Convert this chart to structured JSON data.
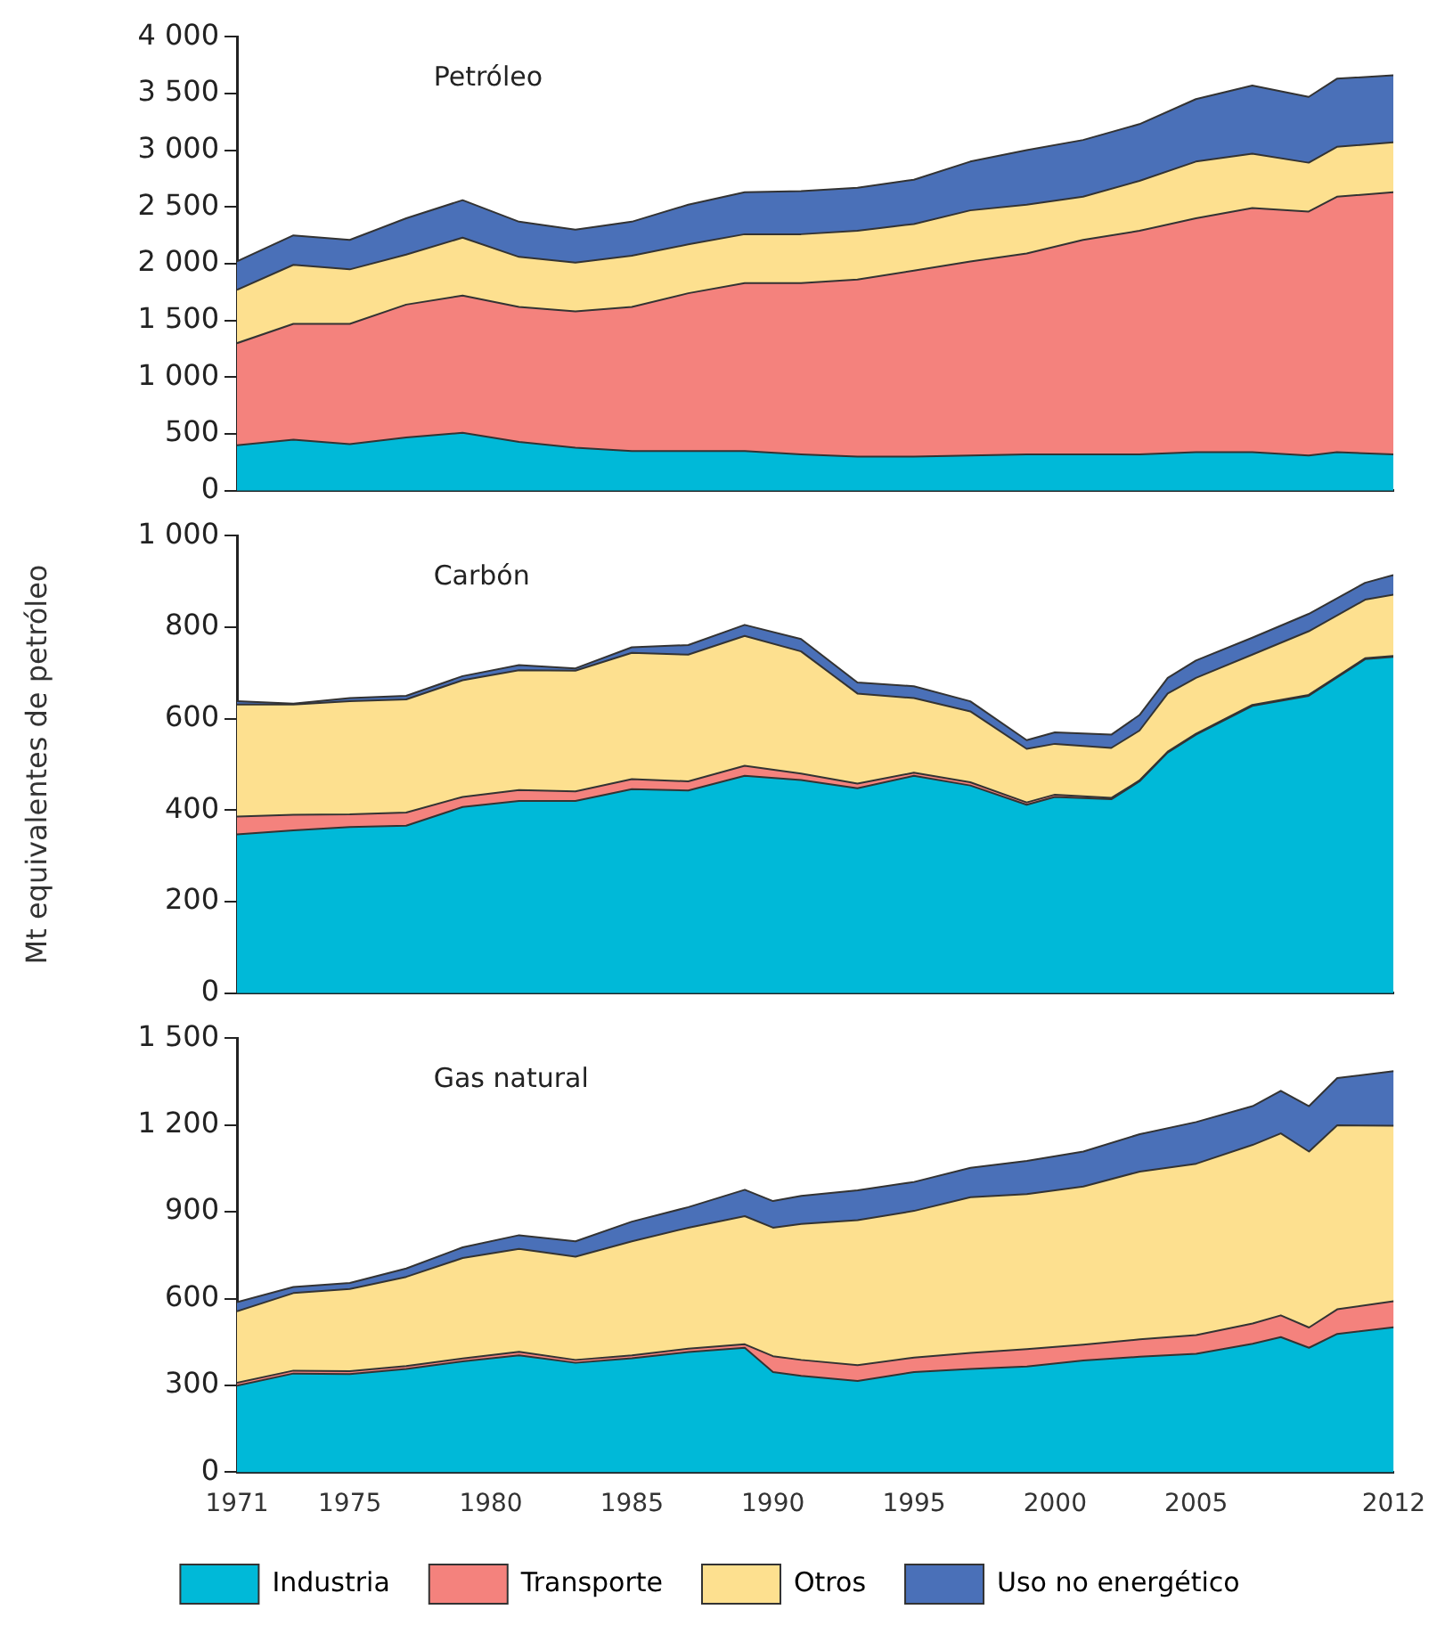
{
  "chart_data": [
    {
      "type": "area",
      "title": "Petróleo",
      "stacked": true,
      "x": [
        1971,
        1973,
        1975,
        1977,
        1979,
        1981,
        1983,
        1985,
        1987,
        1989,
        1991,
        1993,
        1995,
        1997,
        1999,
        2001,
        2003,
        2005,
        2007,
        2009,
        2010,
        2012
      ],
      "series": [
        {
          "color": "#00b9d8",
          "values": [
            400,
            450,
            410,
            470,
            510,
            430,
            380,
            350,
            350,
            350,
            320,
            300,
            300,
            310,
            320,
            320,
            320,
            340,
            340,
            310,
            340,
            320
          ]
        },
        {
          "color": "#f4827d",
          "values": [
            900,
            1020,
            1060,
            1170,
            1210,
            1190,
            1200,
            1270,
            1390,
            1480,
            1510,
            1560,
            1640,
            1710,
            1770,
            1890,
            1970,
            2060,
            2150,
            2150,
            2250,
            2310
          ]
        },
        {
          "color": "#fde08f",
          "values": [
            470,
            520,
            480,
            440,
            510,
            440,
            430,
            450,
            430,
            430,
            430,
            430,
            410,
            450,
            430,
            380,
            440,
            500,
            480,
            430,
            440,
            440
          ]
        },
        {
          "color": "#4a70b8",
          "values": [
            250,
            260,
            260,
            320,
            330,
            310,
            290,
            300,
            350,
            370,
            380,
            380,
            390,
            430,
            480,
            500,
            500,
            550,
            600,
            580,
            600,
            590
          ]
        }
      ],
      "xlim": [
        1971,
        2012
      ],
      "xticks": [
        1971,
        1975,
        1980,
        1985,
        1990,
        1995,
        2000,
        2005,
        2012
      ],
      "ylim": [
        0,
        4000
      ],
      "yticks": [
        0,
        500,
        {
          "value": 1000,
          "label": "1 000"
        },
        {
          "value": 1500,
          "label": "1 500"
        },
        {
          "value": 2000,
          "label": "2 000"
        },
        {
          "value": 2500,
          "label": "2 500"
        },
        {
          "value": 3000,
          "label": "3 000"
        },
        {
          "value": 3500,
          "label": "3 500"
        },
        {
          "value": 4000,
          "label": "4 000"
        }
      ],
      "tick_labels": "y",
      "grid": false,
      "legend": false
    },
    {
      "type": "area",
      "title": "Carbón",
      "ylabel": "Mt equivalentes de petróleo",
      "stacked": true,
      "x": [
        1971,
        1973,
        1975,
        1977,
        1979,
        1981,
        1983,
        1985,
        1987,
        1989,
        1991,
        1993,
        1995,
        1997,
        1999,
        2000,
        2002,
        2003,
        2004,
        2005,
        2007,
        2009,
        2011,
        2012
      ],
      "series": [
        {
          "color": "#00b9d8",
          "values": [
            347,
            356,
            363,
            366,
            407,
            420,
            420,
            446,
            443,
            475,
            466,
            448,
            475,
            454,
            412,
            429,
            424,
            463,
            526,
            565,
            628,
            650,
            730,
            735
          ]
        },
        {
          "color": "#f4827d",
          "values": [
            39,
            34,
            28,
            29,
            22,
            24,
            21,
            22,
            20,
            22,
            14,
            10,
            7,
            7,
            5,
            5,
            3,
            2,
            2,
            2,
            2,
            2,
            2,
            2
          ]
        },
        {
          "color": "#fde08f",
          "values": [
            245,
            241,
            247,
            247,
            255,
            262,
            264,
            276,
            277,
            284,
            267,
            197,
            163,
            155,
            117,
            111,
            109,
            109,
            127,
            122,
            110,
            139,
            128,
            134
          ]
        },
        {
          "color": "#4a70b8",
          "values": [
            7,
            2,
            7,
            8,
            9,
            11,
            5,
            12,
            21,
            24,
            27,
            24,
            26,
            22,
            19,
            25,
            29,
            34,
            34,
            38,
            37,
            38,
            37,
            43
          ]
        }
      ],
      "xlim": [
        1971,
        2012
      ],
      "xticks": [
        1971,
        1975,
        1980,
        1985,
        1990,
        1995,
        2000,
        2005,
        2012
      ],
      "ylim": [
        0,
        1000
      ],
      "yticks": [
        0,
        200,
        400,
        600,
        800,
        {
          "value": 1000,
          "label": "1 000"
        }
      ],
      "tick_labels": "y",
      "grid": false,
      "legend": false
    },
    {
      "type": "area",
      "title": "Gas natural",
      "stacked": true,
      "x": [
        1971,
        1973,
        1975,
        1977,
        1979,
        1981,
        1983,
        1985,
        1987,
        1989,
        1990,
        1991,
        1993,
        1995,
        1997,
        1999,
        2001,
        2003,
        2005,
        2007,
        2008,
        2009,
        2010,
        2012
      ],
      "series": [
        {
          "name": "Industria",
          "color": "#00b9d8",
          "values": [
            299,
            341,
            339,
            357,
            383,
            404,
            378,
            394,
            415,
            430,
            346,
            333,
            315,
            346,
            357,
            365,
            386,
            399,
            409,
            444,
            467,
            430,
            478,
            501
          ]
        },
        {
          "name": "Transporte",
          "color": "#f4827d",
          "values": [
            10,
            10,
            10,
            10,
            10,
            12,
            10,
            10,
            12,
            12,
            55,
            55,
            55,
            50,
            55,
            60,
            55,
            60,
            65,
            70,
            75,
            70,
            85,
            90
          ]
        },
        {
          "name": "Otros",
          "color": "#fde08f",
          "values": [
            247,
            268,
            284,
            308,
            347,
            356,
            357,
            394,
            418,
            443,
            444,
            470,
            501,
            507,
            538,
            536,
            546,
            580,
            592,
            617,
            629,
            608,
            636,
            606
          ]
        },
        {
          "name": "Uso no energético",
          "color": "#4a70b8",
          "values": [
            32,
            21,
            21,
            29,
            37,
            47,
            53,
            68,
            71,
            91,
            92,
            97,
            103,
            100,
            102,
            115,
            121,
            129,
            144,
            134,
            147,
            157,
            163,
            189
          ]
        }
      ],
      "xlim": [
        1971,
        2012
      ],
      "xticks": [
        1971,
        1975,
        1980,
        1985,
        1990,
        1995,
        2000,
        2005,
        2012
      ],
      "ylim": [
        0,
        1500
      ],
      "yticks": [
        0,
        300,
        600,
        900,
        {
          "value": 1200,
          "label": "1 200"
        },
        {
          "value": 1500,
          "label": "1 500"
        }
      ],
      "grid": false,
      "legend": "bottom"
    }
  ]
}
